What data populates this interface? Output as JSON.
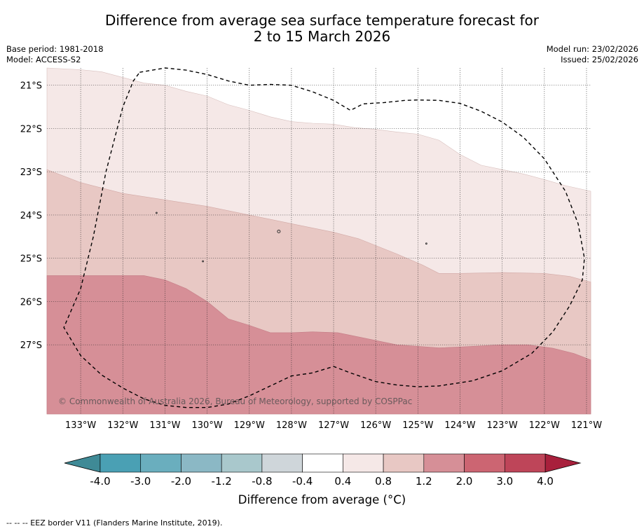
{
  "header": {
    "title_line1": "Difference from average sea surface temperature forecast for",
    "title_line2": "2 to 15 March 2026",
    "base_period": "Base period: 1981-2018",
    "model": "Model: ACCESS-S2",
    "model_run": "Model run: 23/02/2026",
    "issued": "Issued: 25/02/2026"
  },
  "chart_data": {
    "type": "heatmap",
    "title": "Difference from average sea surface temperature forecast for 2 to 15 March 2026",
    "xlim": [
      -133.8,
      -120.9
    ],
    "ylim": [
      -28.6,
      -20.6
    ],
    "x_ticks": [
      {
        "value": -133,
        "label": "133°W"
      },
      {
        "value": -132,
        "label": "132°W"
      },
      {
        "value": -131,
        "label": "131°W"
      },
      {
        "value": -130,
        "label": "130°W"
      },
      {
        "value": -129,
        "label": "129°W"
      },
      {
        "value": -128,
        "label": "128°W"
      },
      {
        "value": -127,
        "label": "127°W"
      },
      {
        "value": -126,
        "label": "126°W"
      },
      {
        "value": -125,
        "label": "125°W"
      },
      {
        "value": -124,
        "label": "124°W"
      },
      {
        "value": -123,
        "label": "123°W"
      },
      {
        "value": -122,
        "label": "122°W"
      },
      {
        "value": -121,
        "label": "121°W"
      }
    ],
    "y_ticks": [
      {
        "value": -21,
        "label": "21°S"
      },
      {
        "value": -22,
        "label": "22°S"
      },
      {
        "value": -23,
        "label": "23°S"
      },
      {
        "value": -24,
        "label": "24°S"
      },
      {
        "value": -25,
        "label": "25°S"
      },
      {
        "value": -26,
        "label": "26°S"
      },
      {
        "value": -27,
        "label": "27°S"
      }
    ],
    "bands": [
      {
        "name": "0.4 to 0.8",
        "color": "#f5e8e7",
        "top": [
          [
            -133.8,
            -20.6
          ],
          [
            -133.8,
            -20.6
          ]
        ],
        "bottom": null
      },
      {
        "name": "0.8 to 1.2",
        "color": "#e8c8c4",
        "top": [
          [
            -133.8,
            -22.95
          ],
          [
            -133.0,
            -23.25
          ],
          [
            -132.0,
            -23.5
          ],
          [
            -131.0,
            -23.65
          ],
          [
            -130.0,
            -23.8
          ],
          [
            -129.0,
            -24.0
          ],
          [
            -128.0,
            -24.2
          ],
          [
            -127.0,
            -24.4
          ],
          [
            -126.4,
            -24.55
          ],
          [
            -125.5,
            -24.9
          ],
          [
            -124.9,
            -25.15
          ],
          [
            -124.5,
            -25.35
          ],
          [
            -124.0,
            -25.35
          ],
          [
            -123.0,
            -25.33
          ],
          [
            -122.0,
            -25.35
          ],
          [
            -121.4,
            -25.42
          ],
          [
            -120.9,
            -25.55
          ]
        ]
      },
      {
        "name": "1.2 to 2.0",
        "color": "#d68f97",
        "top": [
          [
            -133.8,
            -25.4
          ],
          [
            -132.0,
            -25.4
          ],
          [
            -131.5,
            -25.4
          ],
          [
            -131.0,
            -25.5
          ],
          [
            -130.5,
            -25.7
          ],
          [
            -130.0,
            -26.0
          ],
          [
            -129.5,
            -26.4
          ],
          [
            -129.0,
            -26.55
          ],
          [
            -128.5,
            -26.72
          ],
          [
            -128.0,
            -26.72
          ],
          [
            -127.5,
            -26.7
          ],
          [
            -126.9,
            -26.72
          ],
          [
            -126.5,
            -26.8
          ],
          [
            -125.5,
            -27.0
          ],
          [
            -124.5,
            -27.07
          ],
          [
            -124.0,
            -27.05
          ],
          [
            -123.0,
            -27.0
          ],
          [
            -122.4,
            -27.0
          ],
          [
            -121.8,
            -27.08
          ],
          [
            -121.3,
            -27.2
          ],
          [
            -120.9,
            -27.35
          ]
        ]
      }
    ],
    "upper_boundary": [
      [
        -133.8,
        -20.6
      ],
      [
        -133.0,
        -20.64
      ],
      [
        -132.5,
        -20.69
      ],
      [
        -132.0,
        -20.82
      ],
      [
        -131.5,
        -20.95
      ],
      [
        -131.0,
        -21.0
      ],
      [
        -130.5,
        -21.14
      ],
      [
        -130.0,
        -21.25
      ],
      [
        -129.5,
        -21.45
      ],
      [
        -129.0,
        -21.58
      ],
      [
        -128.5,
        -21.73
      ],
      [
        -128.0,
        -21.84
      ],
      [
        -127.5,
        -21.88
      ],
      [
        -127.0,
        -21.9
      ],
      [
        -126.5,
        -21.98
      ],
      [
        -126.0,
        -22.02
      ],
      [
        -125.5,
        -22.08
      ],
      [
        -125.0,
        -22.13
      ],
      [
        -124.5,
        -22.27
      ],
      [
        -124.0,
        -22.6
      ],
      [
        -123.5,
        -22.85
      ],
      [
        -123.0,
        -22.95
      ],
      [
        -122.5,
        -23.05
      ],
      [
        -122.0,
        -23.18
      ],
      [
        -121.5,
        -23.32
      ],
      [
        -120.9,
        -23.45
      ]
    ],
    "eez_border": [
      [
        -131.6,
        -20.7
      ],
      [
        -131.0,
        -20.6
      ],
      [
        -130.5,
        -20.65
      ],
      [
        -130.0,
        -20.75
      ],
      [
        -129.5,
        -20.9
      ],
      [
        -129.0,
        -21.0
      ],
      [
        -128.5,
        -20.98
      ],
      [
        -128.0,
        -21.0
      ],
      [
        -127.5,
        -21.15
      ],
      [
        -127.0,
        -21.35
      ],
      [
        -126.6,
        -21.58
      ],
      [
        -126.3,
        -21.43
      ],
      [
        -125.8,
        -21.4
      ],
      [
        -125.3,
        -21.35
      ],
      [
        -125.0,
        -21.34
      ],
      [
        -124.5,
        -21.35
      ],
      [
        -124.0,
        -21.42
      ],
      [
        -123.5,
        -21.6
      ],
      [
        -123.0,
        -21.85
      ],
      [
        -122.5,
        -22.2
      ],
      [
        -122.0,
        -22.7
      ],
      [
        -121.5,
        -23.45
      ],
      [
        -121.2,
        -24.2
      ],
      [
        -121.05,
        -25.0
      ],
      [
        -121.1,
        -25.5
      ],
      [
        -121.4,
        -26.1
      ],
      [
        -121.8,
        -26.7
      ],
      [
        -122.3,
        -27.2
      ],
      [
        -123.0,
        -27.6
      ],
      [
        -123.7,
        -27.83
      ],
      [
        -124.5,
        -27.95
      ],
      [
        -125.0,
        -27.97
      ],
      [
        -125.5,
        -27.93
      ],
      [
        -126.0,
        -27.85
      ],
      [
        -126.6,
        -27.65
      ],
      [
        -127.0,
        -27.5
      ],
      [
        -127.5,
        -27.65
      ],
      [
        -128.0,
        -27.72
      ],
      [
        -128.5,
        -27.95
      ],
      [
        -129.0,
        -28.18
      ],
      [
        -129.5,
        -28.37
      ],
      [
        -130.0,
        -28.45
      ],
      [
        -130.5,
        -28.45
      ],
      [
        -131.0,
        -28.4
      ],
      [
        -131.5,
        -28.25
      ],
      [
        -132.0,
        -28.0
      ],
      [
        -132.5,
        -27.7
      ],
      [
        -133.0,
        -27.25
      ],
      [
        -133.4,
        -26.6
      ],
      [
        -133.0,
        -25.7
      ],
      [
        -132.7,
        -24.5
      ],
      [
        -132.4,
        -23.0
      ],
      [
        -132.0,
        -21.5
      ],
      [
        -131.75,
        -20.9
      ],
      [
        -131.6,
        -20.7
      ]
    ],
    "islands": [
      [
        -131.2,
        -23.95
      ],
      [
        -128.3,
        -24.38
      ],
      [
        -124.8,
        -24.66
      ],
      [
        -130.1,
        -25.07
      ]
    ],
    "watermark": "© Commonwealth of Australia 2026, Bureau of Meteorology, supported by COSPPac",
    "colorbar": {
      "label": "Difference from average (°C)",
      "boundaries": [
        "-4.0",
        "-3.0",
        "-2.0",
        "-1.2",
        "-0.8",
        "-0.4",
        "0.4",
        "0.8",
        "1.2",
        "2.0",
        "3.0",
        "4.0"
      ],
      "colors": [
        "#4aa0b4",
        "#6aaebe",
        "#8bb8c5",
        "#a9c8cc",
        "#cfd6da",
        "#ffffff",
        "#f5e8e7",
        "#e8c8c4",
        "#d68f97",
        "#cc6572",
        "#be4559"
      ],
      "extend_low_color": "#3f8a96",
      "extend_high_color": "#a8203c"
    },
    "legend_note": "--  --  -- EEZ border V11 (Flanders Marine Institute, 2019)."
  }
}
